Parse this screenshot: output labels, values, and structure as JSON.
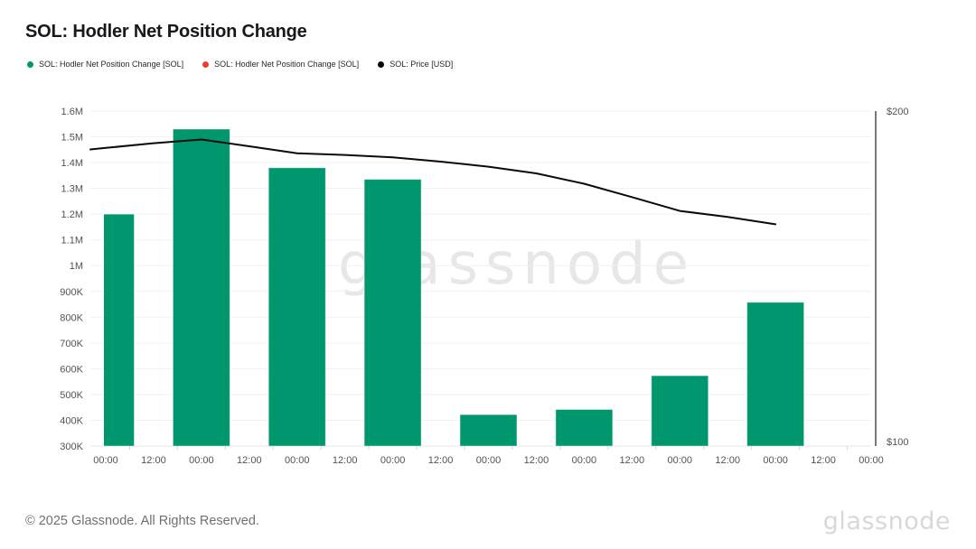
{
  "title": "SOL: Hodler Net Position Change",
  "legend": {
    "items": [
      {
        "label": "SOL: Hodler Net Position Change [SOL]",
        "color": "#00966e"
      },
      {
        "label": "SOL: Hodler Net Position Change [SOL]",
        "color": "#e8432a"
      },
      {
        "label": "SOL: Price [USD]",
        "color": "#0a0a0a"
      }
    ]
  },
  "watermark": "glassnode",
  "footer": {
    "copyright": "© 2025 Glassnode. All Rights Reserved.",
    "brand": "glassnode"
  },
  "chart_data": {
    "type": "bar",
    "title": "SOL: Hodler Net Position Change",
    "grid": "horizontal",
    "legend_position": "top-left",
    "x_tick_labels": [
      "00:00",
      "12:00",
      "00:00",
      "12:00",
      "00:00",
      "12:00",
      "00:00",
      "12:00",
      "00:00",
      "12:00",
      "00:00",
      "12:00",
      "00:00",
      "12:00",
      "00:00",
      "12:00",
      "00:00"
    ],
    "left_axis": {
      "label_ticks": [
        "1.6M",
        "1.5M",
        "1.4M",
        "1.3M",
        "1.2M",
        "1.1M",
        "1M",
        "900K",
        "800K",
        "700K",
        "600K",
        "500K",
        "400K",
        "300K"
      ],
      "min": 300000,
      "max": 1600000
    },
    "right_axis": {
      "label_ticks": [
        "$200",
        "$100"
      ],
      "min": 100,
      "max": 200
    },
    "series": [
      {
        "name": "SOL: Hodler Net Position Change [SOL]",
        "type": "bar",
        "axis": "left",
        "color": "#00966e",
        "points": [
          {
            "tick": 0,
            "value": 1200000
          },
          {
            "tick": 2,
            "value": 1530000
          },
          {
            "tick": 4,
            "value": 1380000
          },
          {
            "tick": 6,
            "value": 1335000
          },
          {
            "tick": 8,
            "value": 422000
          },
          {
            "tick": 10,
            "value": 442000
          },
          {
            "tick": 12,
            "value": 573000
          },
          {
            "tick": 14,
            "value": 858000
          }
        ]
      },
      {
        "name": "SOL: Hodler Net Position Change [SOL]",
        "type": "bar",
        "axis": "left",
        "color": "#e8432a",
        "points": []
      },
      {
        "name": "SOL: Price [USD]",
        "type": "line",
        "axis": "right",
        "color": "#0a0a0a",
        "points": [
          {
            "tick": 0,
            "value": 189.0
          },
          {
            "tick": 1,
            "value": 190.4
          },
          {
            "tick": 2,
            "value": 191.5
          },
          {
            "tick": 3,
            "value": 189.5
          },
          {
            "tick": 4,
            "value": 187.4
          },
          {
            "tick": 5,
            "value": 186.9
          },
          {
            "tick": 6,
            "value": 186.2
          },
          {
            "tick": 7,
            "value": 184.9
          },
          {
            "tick": 8,
            "value": 183.4
          },
          {
            "tick": 9,
            "value": 181.4
          },
          {
            "tick": 10,
            "value": 178.3
          },
          {
            "tick": 11,
            "value": 174.3
          },
          {
            "tick": 12,
            "value": 170.2
          },
          {
            "tick": 13,
            "value": 168.4
          },
          {
            "tick": 14,
            "value": 166.2
          }
        ]
      }
    ]
  }
}
